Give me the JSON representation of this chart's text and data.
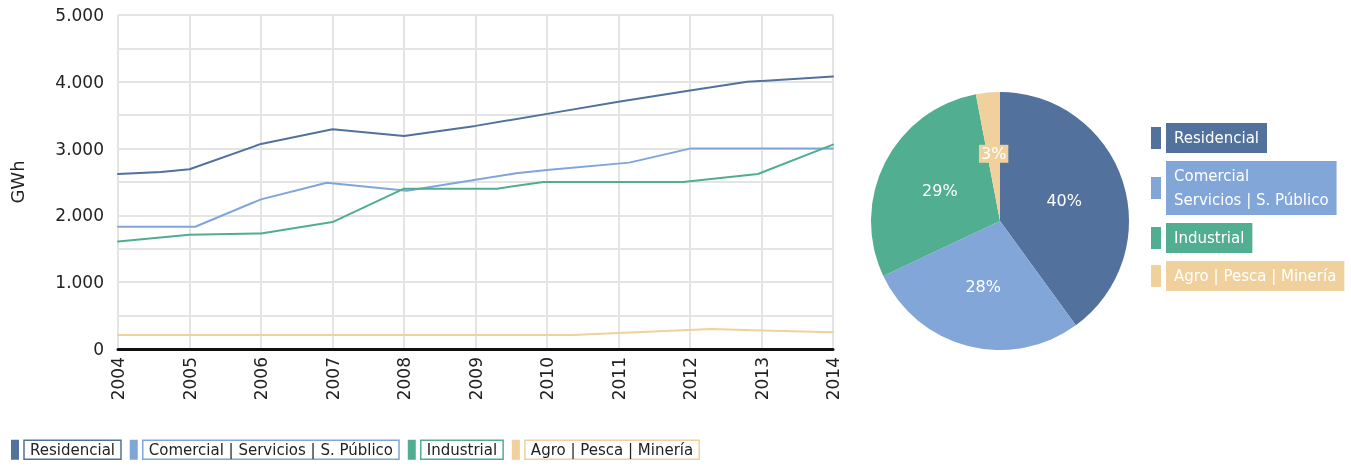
{
  "chart_data": [
    {
      "type": "line",
      "ylabel": "GWh",
      "xlim": [
        2004,
        2014
      ],
      "xticks": [
        2004,
        2005,
        2006,
        2007,
        2008,
        2009,
        2010,
        2011,
        2012,
        2013,
        2014
      ],
      "ylim": [
        0,
        5000
      ],
      "yticks": [
        0,
        {
          "value": 500,
          "label": null
        },
        {
          "value": 1000,
          "label": "1.000"
        },
        {
          "value": 1500,
          "label": null
        },
        {
          "value": 2000,
          "label": "2.000"
        },
        {
          "value": 2500,
          "label": null
        },
        {
          "value": 3000,
          "label": "3.000"
        },
        {
          "value": 3500,
          "label": null
        },
        {
          "value": 4000,
          "label": "4.000"
        },
        {
          "value": 4500,
          "label": null
        },
        {
          "value": 5000,
          "label": "5.000"
        }
      ],
      "grid": true,
      "legend": "bottom left",
      "marker": "none",
      "line_style": "solid",
      "series": [
        {
          "name": "Residencial",
          "color": "#52719c",
          "x": [
            2004,
            2004.6,
            2005,
            2006,
            2007,
            2008,
            2009,
            2010,
            2011,
            2012,
            2012.8,
            2014
          ],
          "values": [
            2620,
            2650,
            2690,
            3070,
            3290,
            3190,
            3340,
            3520,
            3700,
            3870,
            4000,
            4080
          ]
        },
        {
          "name": "Comercial | Servicios | S. Público",
          "color": "#80a5d8",
          "x": [
            2004,
            2005.08,
            2006,
            2006.92,
            2008.04,
            2009.57,
            2010,
            2011.15,
            2012,
            2014
          ],
          "values": [
            1830,
            1830,
            2240,
            2490,
            2370,
            2630,
            2680,
            2790,
            3000,
            3000
          ]
        },
        {
          "name": "Industrial",
          "color": "#4fae8e",
          "x": [
            2004,
            2005,
            2006,
            2007,
            2008,
            2009.3,
            2009.95,
            2011.9,
            2012.95,
            2014
          ],
          "values": [
            1610,
            1710,
            1730,
            1900,
            2400,
            2400,
            2500,
            2500,
            2620,
            3060
          ]
        },
        {
          "name": "Agro | Pesca | Minería",
          "color": "#f0d09c",
          "x": [
            2004,
            2010.36,
            2011,
            2012.3,
            2012.88,
            2014
          ],
          "values": [
            210,
            210,
            240,
            300,
            280,
            250
          ]
        }
      ]
    },
    {
      "type": "pie",
      "categories": [
        "Residencial",
        "Comercial\nServicios | S. Público",
        "Industrial",
        "Agro | Pesca | Minería"
      ],
      "values": [
        40,
        28,
        29,
        3
      ],
      "colors": [
        "#52719c",
        "#82a6d8",
        "#52ae90",
        "#f0d09c"
      ],
      "value_labels": [
        "40%",
        "28%",
        "29%",
        "3%"
      ],
      "legend": "right"
    }
  ]
}
